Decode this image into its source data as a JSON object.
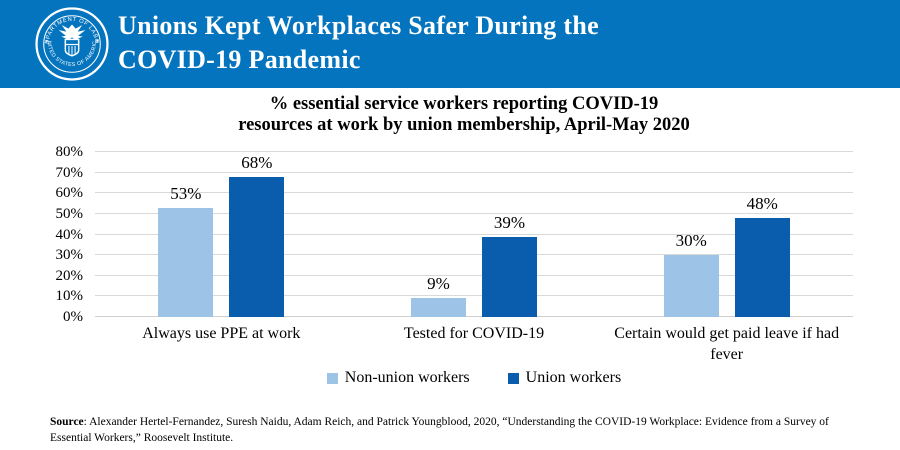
{
  "header": {
    "title_line1": "Unions Kept Workplaces Safer During the",
    "title_line2": "COVID-19 Pandemic",
    "background_color": "#0574BE",
    "seal": {
      "name": "us-department-of-labor-seal",
      "top_text": "DEPARTMENT OF LABOR",
      "bottom_text": "UNITED STATES OF AMERICA"
    }
  },
  "chart_data": {
    "type": "bar",
    "title_line1": "% essential service workers reporting COVID-19",
    "title_line2": "resources at work by union membership, April-May 2020",
    "categories": [
      "Always use PPE at work",
      "Tested for COVID-19",
      "Certain would get paid leave if had fever"
    ],
    "series": [
      {
        "name": "Non-union workers",
        "color": "#9DC3E6",
        "values": [
          53,
          9,
          30
        ]
      },
      {
        "name": "Union workers",
        "color": "#0A5CAC",
        "values": [
          68,
          39,
          48
        ]
      }
    ],
    "value_suffix": "%",
    "ylim": [
      0,
      80
    ],
    "ytick_step": 10,
    "grid": true,
    "legend_position": "bottom",
    "gridline_color": "#D9D9D9"
  },
  "source": {
    "label": "Source",
    "text": ": Alexander Hertel-Fernandez, Suresh Naidu, Adam Reich, and Patrick Youngblood, 2020, “Understanding the COVID-19 Workplace: Evidence from a Survey of Essential Workers,” Roosevelt Institute."
  }
}
